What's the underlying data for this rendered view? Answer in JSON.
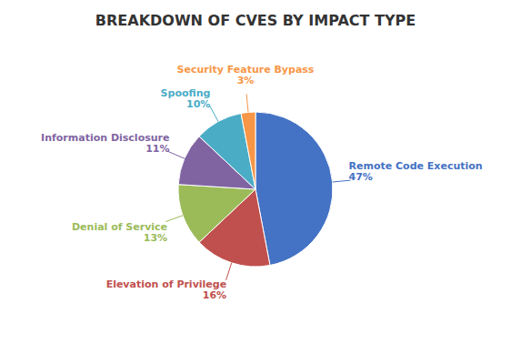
{
  "chart_data": {
    "type": "pie",
    "title": "BREAKDOWN OF CVES BY IMPACT TYPE",
    "categories": [
      "Remote Code Execution",
      "Elevation of Privilege",
      "Denial of Service",
      "Information Disclosure",
      "Spoofing",
      "Security Feature Bypass"
    ],
    "values": [
      47,
      16,
      13,
      11,
      10,
      3
    ],
    "value_labels": [
      "47%",
      "16%",
      "13%",
      "11%",
      "10%",
      "3%"
    ],
    "colors": [
      "#4472C4",
      "#C0504D",
      "#9BBB59",
      "#8064A2",
      "#4BACC6",
      "#F79646"
    ],
    "data_labels": true
  }
}
